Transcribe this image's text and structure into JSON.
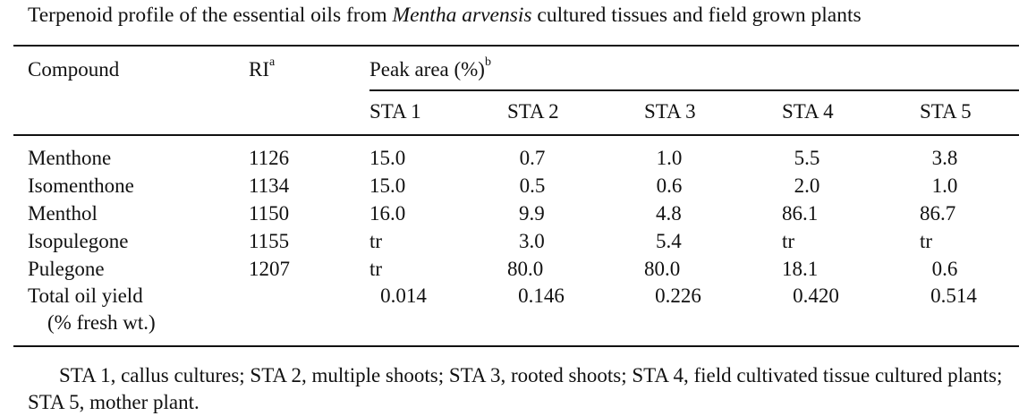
{
  "caption": {
    "prefix": "Terpenoid profile of the essential oils from ",
    "species": "Mentha arvensis",
    "suffix": " cultured tissues and field grown plants"
  },
  "headers": {
    "compound": "Compound",
    "ri": "RI",
    "ri_sup": "a",
    "peak": "Peak area (%)",
    "peak_sup": "b",
    "sta": [
      "STA 1",
      "STA 2",
      "STA 3",
      "STA 4",
      "STA 5"
    ]
  },
  "rows": [
    {
      "compound": "Menthone",
      "ri": "1126",
      "values": [
        "15.0",
        "0.7",
        "1.0",
        "5.5",
        "3.8"
      ]
    },
    {
      "compound": "Isomenthone",
      "ri": "1134",
      "values": [
        "15.0",
        "0.5",
        "0.6",
        "2.0",
        "1.0"
      ]
    },
    {
      "compound": "Menthol",
      "ri": "1150",
      "values": [
        "16.0",
        "9.9",
        "4.8",
        "86.1",
        "86.7"
      ]
    },
    {
      "compound": "Isopulegone",
      "ri": "1155",
      "values": [
        "tr",
        "3.0",
        "5.4",
        "tr",
        "tr"
      ]
    },
    {
      "compound": "Pulegone",
      "ri": "1207",
      "values": [
        "tr",
        "80.0",
        "80.0",
        "18.1",
        "0.6"
      ]
    }
  ],
  "total": {
    "label_line1": "Total oil yield",
    "label_line2": "(% fresh wt.)",
    "values": [
      "0.014",
      "0.146",
      "0.226",
      "0.420",
      "0.514"
    ]
  },
  "footnote": "STA 1, callus cultures; STA 2, multiple shoots; STA 3, rooted shoots; STA 4, field cultivated tissue cultured plants; STA 5, mother plant."
}
